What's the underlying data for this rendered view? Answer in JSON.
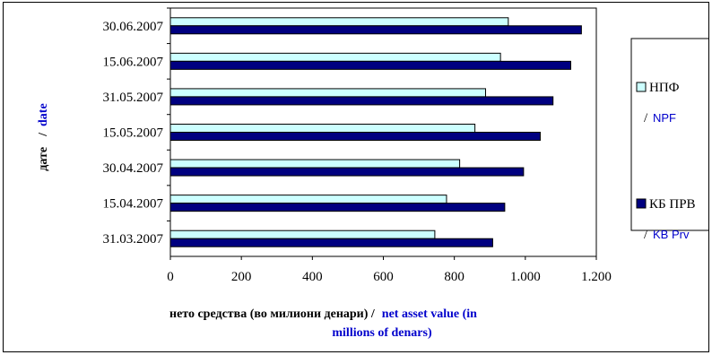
{
  "colors": {
    "npf_fill": "#ccffff",
    "kb_fill": "#000080",
    "bar_stroke": "#000000",
    "english_text": "#0000cc"
  },
  "chart_data": {
    "type": "bar",
    "orientation": "horizontal",
    "categories": [
      "31.03.2007",
      "15.04.2007",
      "30.04.2007",
      "15.05.2007",
      "31.05.2007",
      "15.06.2007",
      "30.06.2007"
    ],
    "series": [
      {
        "name": "НПФ",
        "name_en": "NPF",
        "values": [
          745,
          778,
          815,
          858,
          888,
          930,
          952
        ]
      },
      {
        "name": "КБ ПРВ",
        "name_en": "KB Prv",
        "values": [
          908,
          942,
          995,
          1042,
          1078,
          1128,
          1158
        ]
      }
    ],
    "xlim": [
      0,
      1200
    ],
    "xticks": [
      "0",
      "200",
      "400",
      "600",
      "800",
      "1.000",
      "1.200"
    ],
    "xlabel_native": "нето средства (во милиони денари) /",
    "xlabel_en_line1": "net asset value (in",
    "xlabel_en_line2": "millions of denars)",
    "ylabel_native": "дате",
    "ylabel_en": "date",
    "grid": false,
    "legend": "right"
  }
}
